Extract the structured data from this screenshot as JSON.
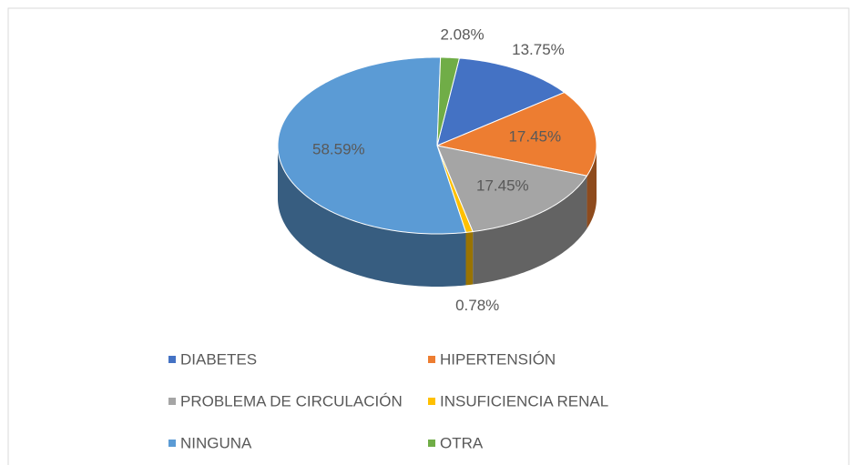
{
  "chart_data": {
    "type": "pie",
    "categories": [
      "DIABETES",
      "HIPERTENSIÓN",
      "PROBLEMA DE CIRCULACIÓN",
      "INSUFICIENCIA RENAL",
      "NINGUNA",
      "OTRA"
    ],
    "values": [
      13.75,
      17.45,
      17.45,
      0.78,
      58.59,
      2.08
    ],
    "value_labels": [
      "13.75%",
      "17.45%",
      "17.45%",
      "0.78%",
      "58.59%",
      "2.08%"
    ],
    "colors": [
      "#4472c4",
      "#ed7d31",
      "#a5a5a5",
      "#ffc000",
      "#5b9bd5",
      "#70ad47"
    ],
    "legend": "bottom"
  }
}
